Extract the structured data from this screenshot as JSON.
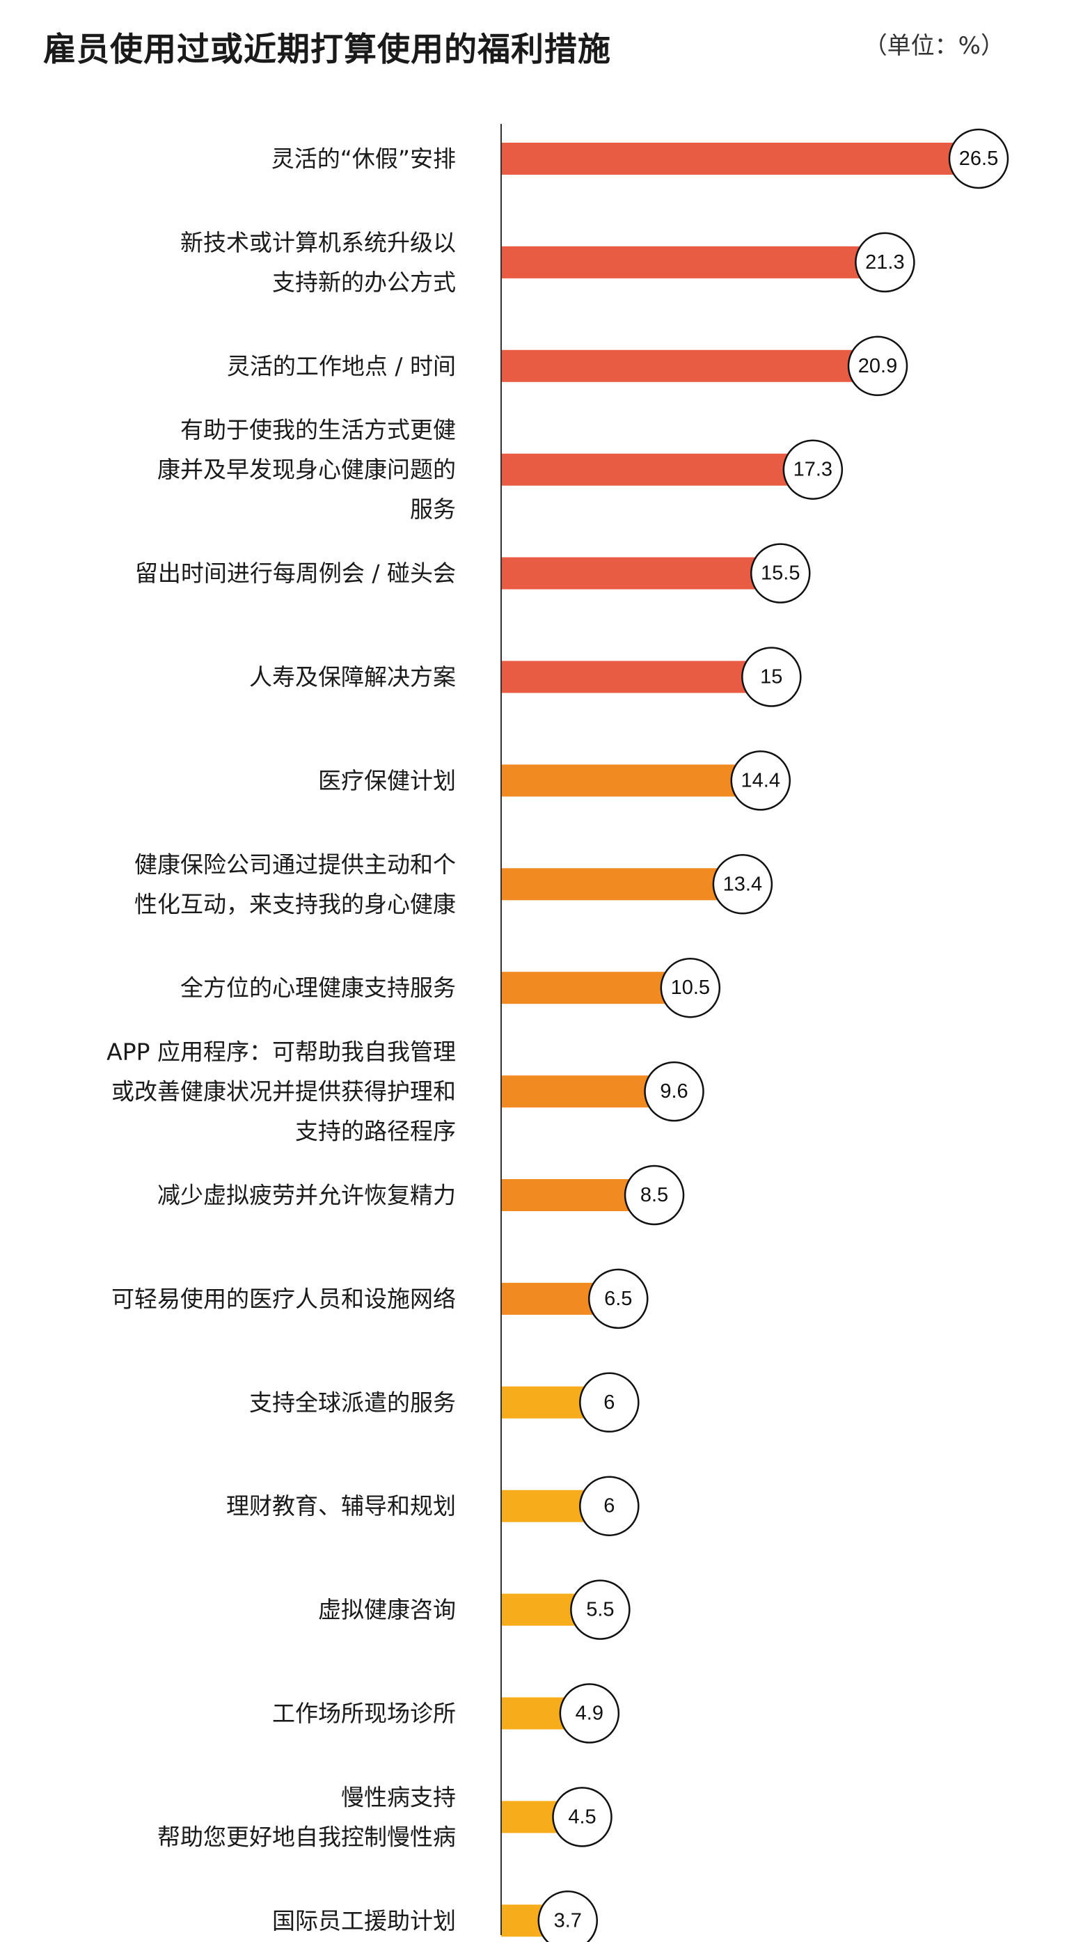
{
  "header": {
    "title": "雇员使用过或近期打算使用的福利措施",
    "unit": "（单位：%）"
  },
  "colors": {
    "red": "#E85C43",
    "orange": "#F28A22",
    "yellow": "#F7AC1B",
    "axis": "#333333"
  },
  "chart_data": {
    "type": "bar",
    "orientation": "horizontal",
    "title": "雇员使用过或近期打算使用的福利措施",
    "unit": "%",
    "categories": [
      [
        "灵活的“休假”安排"
      ],
      [
        "新技术或计算机系统升级以",
        "支持新的办公方式"
      ],
      [
        "灵活的工作地点 / 时间"
      ],
      [
        "有助于使我的生活方式更健",
        "康并及早发现身心健康问题的",
        "服务"
      ],
      [
        "留出时间进行每周例会 / 碰头会"
      ],
      [
        "人寿及保障解决方案"
      ],
      [
        "医疗保健计划"
      ],
      [
        "健康保险公司通过提供主动和个",
        "性化互动，来支持我的身心健康"
      ],
      [
        "全方位的心理健康支持服务"
      ],
      [
        "APP 应用程序：可帮助我自我管理",
        "或改善健康状况并提供获得护理和",
        "支持的路径程序"
      ],
      [
        "减少虚拟疲劳并允许恢复精力"
      ],
      [
        "可轻易使用的医疗人员和设施网络"
      ],
      [
        "支持全球派遣的服务"
      ],
      [
        "理财教育、辅导和规划"
      ],
      [
        "虚拟健康咨询"
      ],
      [
        "工作场所现场诊所"
      ],
      [
        "慢性病支持",
        "帮助您更好地自我控制慢性病"
      ],
      [
        "国际员工援助计划"
      ]
    ],
    "values": [
      26.5,
      21.3,
      20.9,
      17.3,
      15.5,
      15,
      14.4,
      13.4,
      10.5,
      9.6,
      8.5,
      6.5,
      6,
      6,
      5.5,
      4.9,
      4.5,
      3.7
    ],
    "value_labels": [
      "26.5",
      "21.3",
      "20.9",
      "17.3",
      "15.5",
      "15",
      "14.4",
      "13.4",
      "10.5",
      "9.6",
      "8.5",
      "6.5",
      "6",
      "6",
      "5.5",
      "4.9",
      "4.5",
      "3.7"
    ],
    "bar_colors": [
      "red",
      "red",
      "red",
      "red",
      "red",
      "red",
      "orange",
      "orange",
      "orange",
      "orange",
      "orange",
      "orange",
      "yellow",
      "yellow",
      "yellow",
      "yellow",
      "yellow",
      "yellow"
    ],
    "xlim": [
      0,
      26.5
    ],
    "grid": false,
    "legend": "none"
  }
}
